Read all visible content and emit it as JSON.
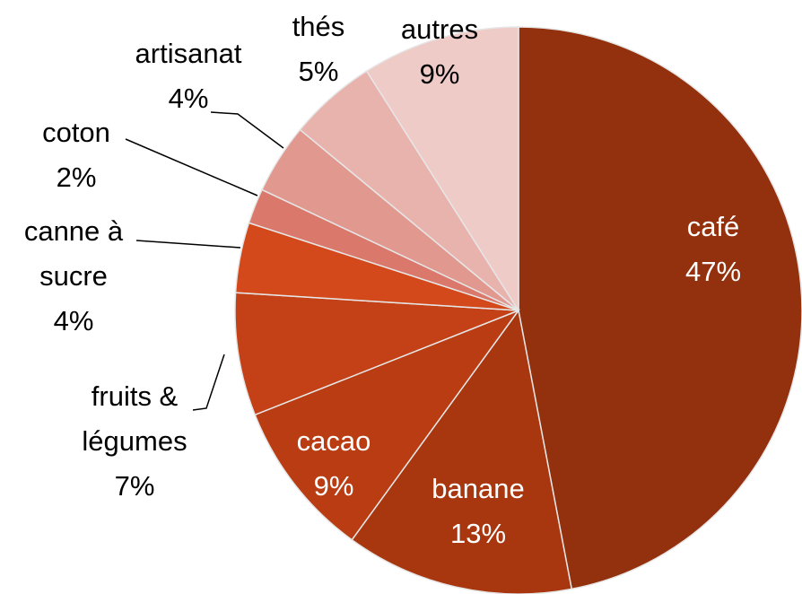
{
  "chart_data": {
    "type": "pie",
    "categories": [
      "café",
      "banane",
      "cacao",
      "fruits & légumes",
      "canne à sucre",
      "coton",
      "artisanat",
      "thés",
      "autres"
    ],
    "values": [
      47,
      13,
      9,
      7,
      4,
      2,
      4,
      5,
      9
    ],
    "value_labels": [
      "47%",
      "13%",
      "9%",
      "7%",
      "4%",
      "2%",
      "4%",
      "5%",
      "9%"
    ],
    "colors": [
      "#93300d",
      "#a8360f",
      "#b93c12",
      "#c44118",
      "#d3491b",
      "#d9786b",
      "#e0988f",
      "#e8b3ad",
      "#eecbc7"
    ]
  }
}
